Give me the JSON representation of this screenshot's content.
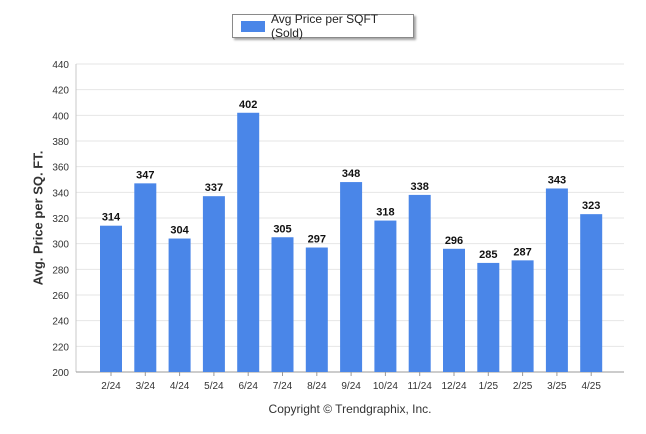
{
  "legend": {
    "label": "Avg Price per SQFT (Sold)",
    "color": "#4a86e8"
  },
  "copyright": "Copyright © Trendgraphix, Inc.",
  "chart_data": {
    "type": "bar",
    "title": "",
    "xlabel": "",
    "ylabel": "Avg. Price per SQ. FT.",
    "categories": [
      "2/24",
      "3/24",
      "4/24",
      "5/24",
      "6/24",
      "7/24",
      "8/24",
      "9/24",
      "10/24",
      "11/24",
      "12/24",
      "1/25",
      "2/25",
      "3/25",
      "4/25"
    ],
    "series": [
      {
        "name": "Avg Price per SQFT (Sold)",
        "values": [
          314,
          347,
          304,
          337,
          402,
          305,
          297,
          348,
          318,
          338,
          296,
          285,
          287,
          343,
          323
        ]
      }
    ],
    "ylim": [
      200,
      440
    ],
    "yticks": [
      200,
      220,
      240,
      260,
      280,
      300,
      320,
      340,
      360,
      380,
      400,
      420,
      440
    ],
    "grid": true,
    "legend_position": "top-center",
    "bar_color": "#4a86e8",
    "data_labels": true
  }
}
